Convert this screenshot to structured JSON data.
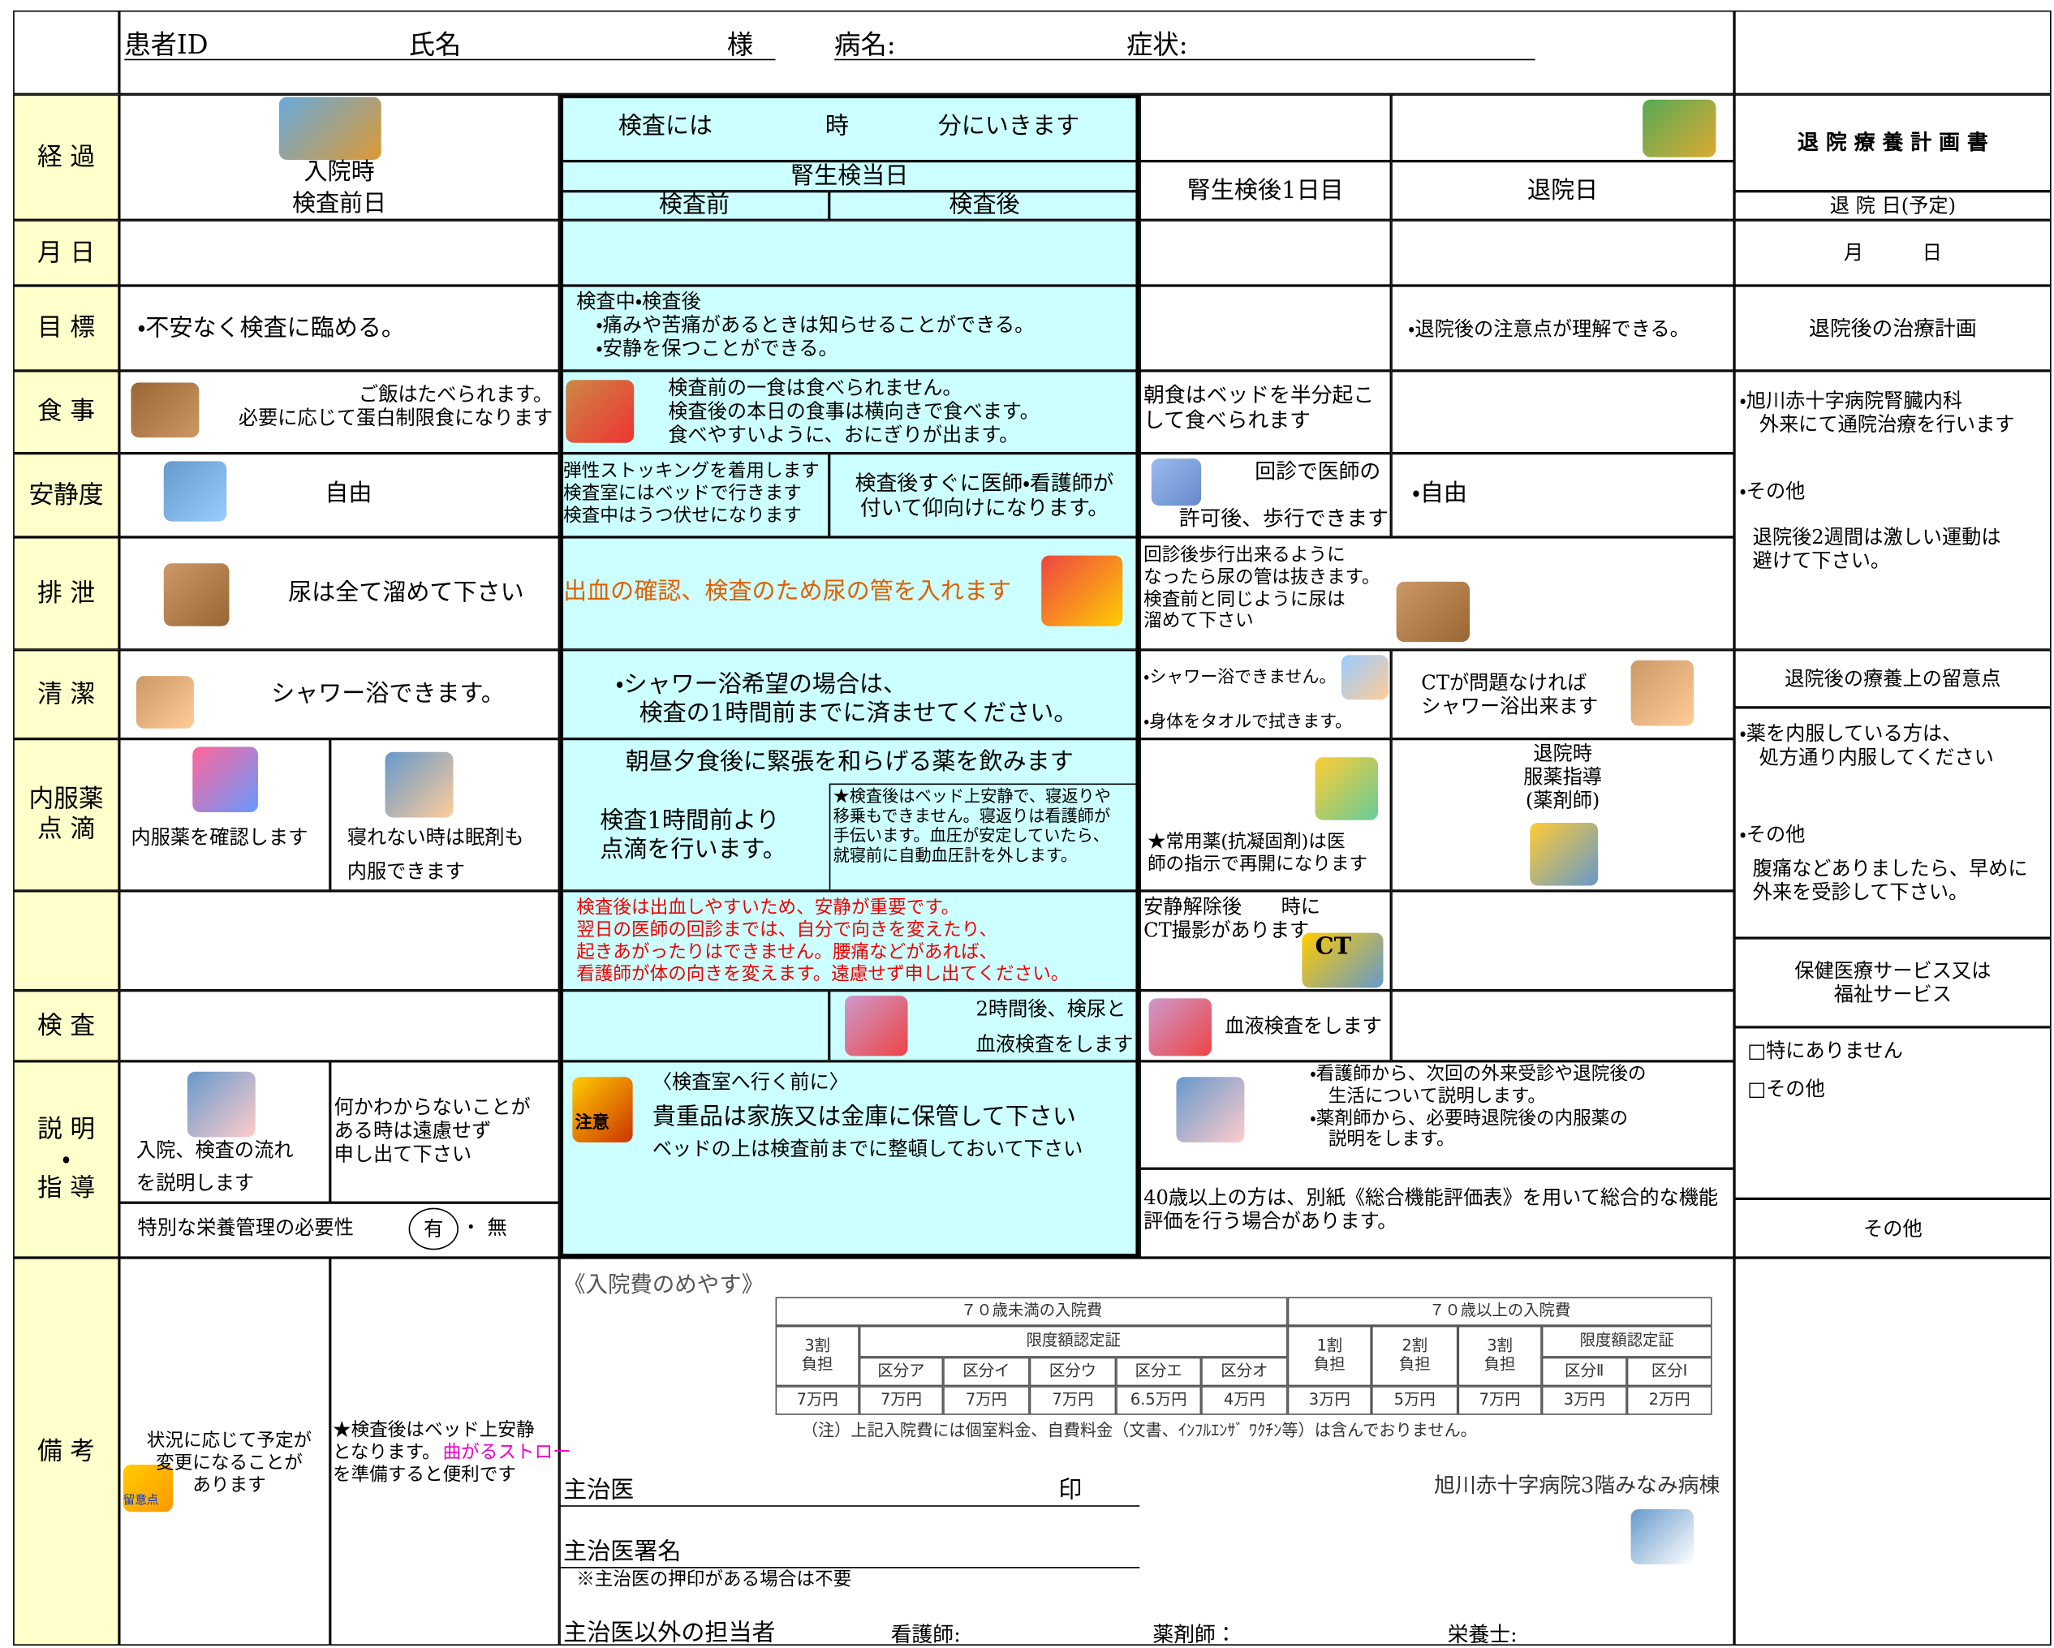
{
  "header": {
    "patient_id": "患者ID",
    "name": "氏名",
    "honorific": "様",
    "disease": "病名:",
    "symptom": "症状:"
  },
  "row_labels": {
    "progress": "経 過",
    "date": "月 日",
    "goal": "目 標",
    "meal": "食 事",
    "rest": "安静度",
    "excretion": "排 泄",
    "hygiene": "清 潔",
    "medication": "内服薬\n点 滴",
    "exam": "検 査",
    "explanation": "説 明\n・\n指 導",
    "notes": "備 考"
  },
  "progress": {
    "admission": "入院時",
    "day_before": "検査前日",
    "exam_at": "検査には",
    "hour": "時",
    "minute": "分にいきます",
    "exam_day": "腎生検当日",
    "before": "検査前",
    "after": "検査後",
    "day1": "腎生検後1日目",
    "discharge": "退院日"
  },
  "goal": {
    "day_before": "・不安なく検査に臨める。",
    "exam_day": "検査中・検査後\n　・痛みや苦痛があるときは知らせることができる。\n　・安静を保つことができる。",
    "discharge": "・退院後の注意点が理解できる。"
  },
  "meal": {
    "day_before": "ご飯はたべられます。\n必要に応じて蛋白制限食になります",
    "exam_day": "検査前の一食は食べられません。\n検査後の本日の食事は横向きで食べます。\n食べやすいように、おにぎりが出ます。",
    "day1": "朝食はベッドを半分起こして食べられます"
  },
  "rest": {
    "day_before": "自由",
    "exam_before": "弾性ストッキングを着用します\n検査室にはベッドで行きます\n検査中はうつ伏せになります",
    "exam_after": "検査後すぐに医師・看護師が\n付いて仰向けになります。",
    "day1_a": "回診で医師の",
    "day1_b": "許可後、歩行できます",
    "discharge": "・自由"
  },
  "excretion": {
    "day_before": "尿は全て溜めて下さい",
    "exam_day": "出血の確認、検査のため尿の管を入れます",
    "day1": "回診後歩行出来るように\nなったら尿の管は抜きます。\n検査前と同じように尿は\n溜めて下さい"
  },
  "hygiene": {
    "day_before": "シャワー浴できます。",
    "exam_day": "・シャワー浴希望の場合は、\n　検査の1時間前までに済ませてください。",
    "day1_a": "・シャワー浴できません。",
    "day1_b": "・身体をタオルで拭きます。",
    "discharge": "CTが問題なければ\nシャワー浴出来ます"
  },
  "medication": {
    "check": "内服薬を確認します",
    "sleep_a": "寝れない時は眠剤も",
    "sleep_b": "内服できます",
    "exam_day": "朝昼夕食後に緊張を和らげる薬を飲みます",
    "drip": "検査1時間前より\n点滴を行います。",
    "note": "★検査後はベッド上安静で、寝返りや\n移乗もできません。寝返りは看護師が\n手伝います。血圧が安定していたら、\n就寝前に自動血圧計を外します。",
    "day1": "★常用薬(抗凝固剤)は医\n師の指示で再開になります",
    "discharge": "退院時\n服薬指導\n(薬剤師)"
  },
  "caution": {
    "exam_day": [
      "検査後は出血しやすいため、安静が重要です。",
      "翌日の医師の回診までは、自分で向きを変えたり、",
      "起きあがったりはできません。腰痛などがあれば、",
      "看護師が体の向きを変えます。遠慮せず申し出てください。"
    ],
    "day1": "安静解除後　　時に\nCT撮影があります",
    "ct": "CT"
  },
  "exam": {
    "exam_after_a": "2時間後、検尿と",
    "exam_after_b": "血液検査をします",
    "day1": "血液検査をします"
  },
  "explanation": {
    "flow_a": "入院、検査の流れ",
    "flow_b": "を説明します",
    "ask": "何かわからないことが\nある時は遠慮せず\n申し出て下さい",
    "nutrition": "特別な栄養管理の必要性",
    "yes": "有",
    "sep": "・",
    "no": "無",
    "attention": "注意",
    "before_title": "〈検査室へ行く前に〉",
    "valuables": "貴重品は家族又は金庫に保管して下さい",
    "bed": "ベッドの上は検査前までに整頓しておいて下さい",
    "day1": "・看護師から、次回の外来受診や退院後の\n　生活について説明します。\n・薬剤師から、必要時退院後の内服薬の\n　説明をします。",
    "over40": "40歳以上の方は、別紙《総合機能評価表》を用いて総合的な機能評価を行う場合があります。"
  },
  "notes": {
    "change": "状況に応じて予定が\n変更になることが\nあります",
    "icon": "留意点",
    "bed_a": "★検査後はベッド上安静",
    "bed_b": "となります。",
    "straw": "曲がるストロー",
    "bed_c": "を準備すると便利です"
  },
  "right_column": {
    "title": "退 院 療 養 計 画 書",
    "discharge_date": "退 院 日(予定)",
    "month_day": "月　　　日",
    "treatment_plan": "退院後の治療計画",
    "treatment": "・旭川赤十字病院腎臓内科\n　外来にて通院治療を行います",
    "other_a": "・その他",
    "exercise": "退院後2週間は激しい運動は\n避けて下さい。",
    "care_title": "退院後の療養上の留意点",
    "medicine": "・薬を内服している方は、\n　処方通り内服してください",
    "other_b": "・その他",
    "abdominal": "腹痛などありましたら、早めに\n外来を受診して下さい。",
    "service": "保健医療サービス又は\n福祉サービス",
    "none": "□特にありません",
    "other_c": "□その他",
    "other_d": "その他"
  },
  "cost_table": {
    "title": "《入院費のめやす》",
    "under70": "７０歳未満の入院費",
    "over70": "７０歳以上の入院費",
    "share3_u": "3割\n負担",
    "limit_u": "限度額認定証",
    "divisions_u": [
      "区分ア",
      "区分イ",
      "区分ウ",
      "区分エ",
      "区分オ"
    ],
    "share1": "1割\n負担",
    "share2": "2割\n負担",
    "share3_o": "3割\n負担",
    "limit_o": "限度額認定証",
    "divisions_o": [
      "区分Ⅱ",
      "区分Ⅰ"
    ],
    "amounts": [
      "7万円",
      "7万円",
      "7万円",
      "7万円",
      "6.5万円",
      "4万円",
      "3万円",
      "5万円",
      "7万円",
      "3万円",
      "2万円"
    ],
    "note": "（注）上記入院費には個室料金、自費料金（文書、ｲﾝﾌﾙｴﾝｻﾞ ﾜｸﾁﾝ等）は含んでおりません。"
  },
  "signature": {
    "doctor": "主治医",
    "seal": "印",
    "hospital": "旭川赤十字病院3階みなみ病棟",
    "doctor_sign": "主治医署名",
    "seal_note": "※主治医の押印がある場合は不要",
    "staff": "主治医以外の担当者",
    "nurse": "看護師:",
    "pharmacist": "薬剤師：",
    "dietitian": "栄養士:"
  }
}
